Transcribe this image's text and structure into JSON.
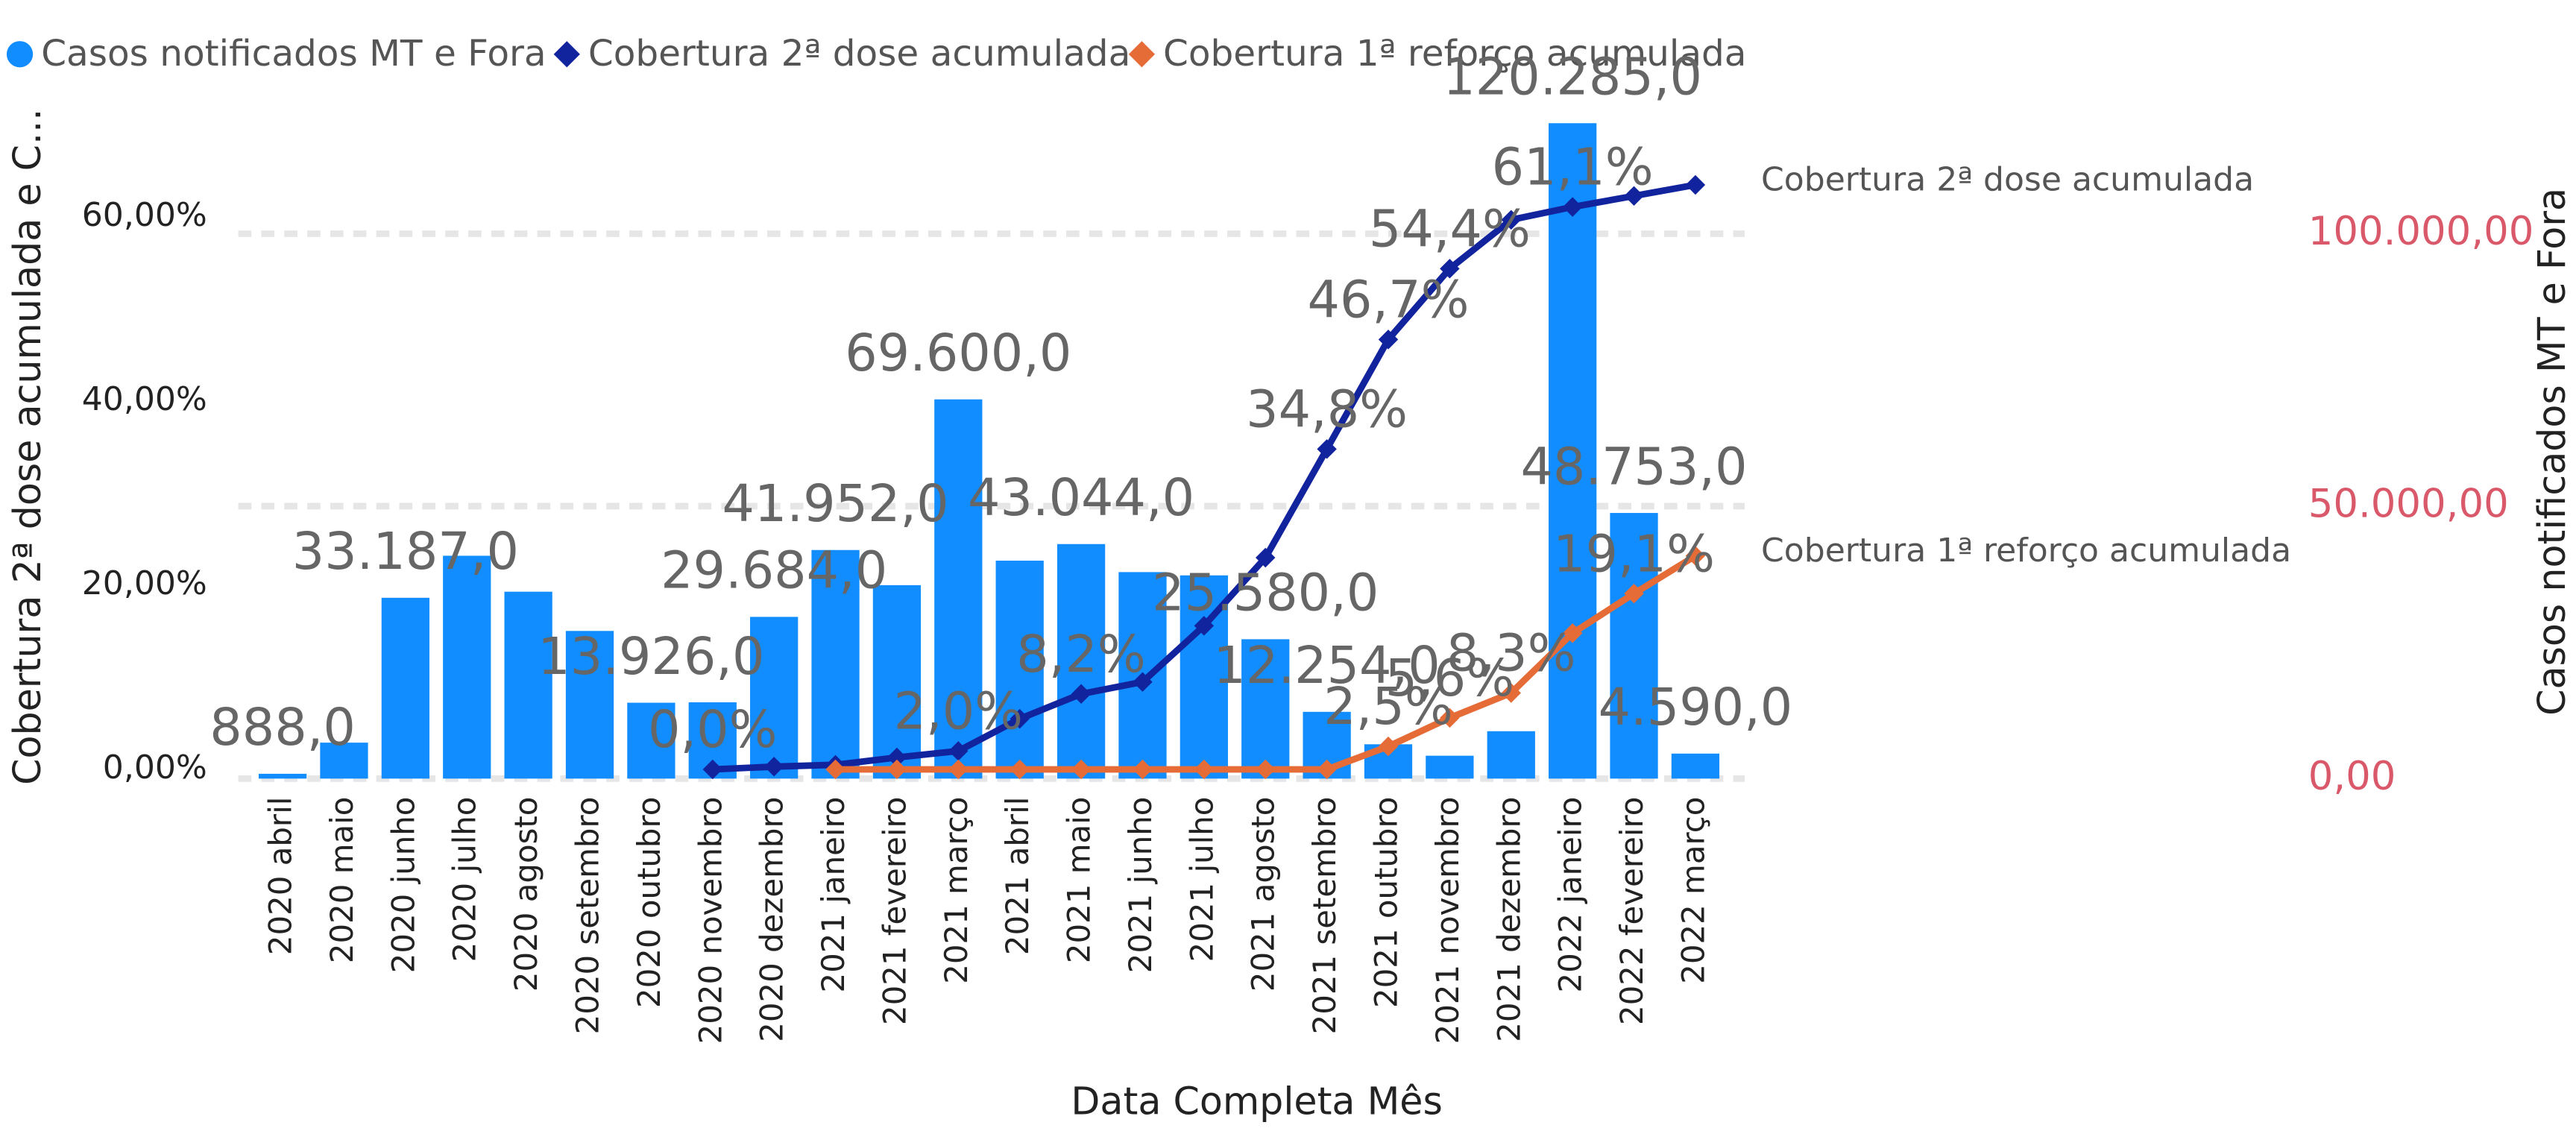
{
  "chart_data": {
    "type": "combo",
    "x_label": "Data Completa Mês",
    "y_label": "Cobertura 2ª dose acumulada e C...",
    "y2_label": "Casos notificados MT e Fora",
    "categories": [
      "2020 abril",
      "2020 maio",
      "2020 junho",
      "2020 julho",
      "2020 agosto",
      "2020 setembro",
      "2020 outubro",
      "2020 novembro",
      "2020 dezembro",
      "2021 janeiro",
      "2021 fevereiro",
      "2021 março",
      "2021 abril",
      "2021 maio",
      "2021 junho",
      "2021 julho",
      "2021 agosto",
      "2021 setembro",
      "2021 outubro",
      "2021 novembro",
      "2021 dezembro",
      "2022 janeiro",
      "2022 fevereiro",
      "2022 março"
    ],
    "series": [
      {
        "name": "Casos notificados MT e Fora",
        "type": "bar",
        "axis": "y2",
        "color": "#118DFF",
        "values": [
          888,
          6600,
          33187,
          40900,
          34300,
          27100,
          13926,
          14000,
          29684,
          41952,
          35500,
          69600,
          40000,
          43044,
          37900,
          37300,
          25580,
          12254,
          6300,
          4200,
          8700,
          120285,
          48753,
          4590
        ],
        "value_labels": [
          "888,0",
          null,
          "33.187,0",
          null,
          null,
          null,
          "13.926,0",
          null,
          "29.684,0",
          "41.952,0",
          null,
          "69.600,0",
          null,
          "43.044,0",
          null,
          null,
          "25.580,0",
          "12.254,0",
          null,
          null,
          null,
          "120.285,0",
          "48.753,0",
          "4.590,0"
        ]
      },
      {
        "name": "Cobertura 2ª dose acumulada",
        "type": "line",
        "axis": "y",
        "color": "#12239E",
        "values": [
          null,
          null,
          null,
          null,
          null,
          null,
          null,
          0,
          0.3,
          0.5,
          1.3,
          2.0,
          5.5,
          8.2,
          9.5,
          15.6,
          23.0,
          34.8,
          46.7,
          54.4,
          59.7,
          61.1,
          62.3,
          63.5
        ],
        "value_labels": [
          null,
          null,
          null,
          null,
          null,
          null,
          null,
          "0,0%",
          null,
          null,
          null,
          "2,0%",
          null,
          "8,2%",
          null,
          null,
          null,
          "34,8%",
          "46,7%",
          "54,4%",
          null,
          "61,1%",
          null,
          null
        ]
      },
      {
        "name": "Cobertura 1ª reforço acumulada",
        "type": "line",
        "axis": "y",
        "color": "#E66C37",
        "values": [
          null,
          null,
          null,
          null,
          null,
          null,
          null,
          null,
          null,
          0,
          0,
          0,
          0,
          0,
          0,
          0,
          0,
          0,
          2.5,
          5.6,
          8.3,
          14.8,
          19.1,
          23.2
        ],
        "value_labels": [
          null,
          null,
          null,
          null,
          null,
          null,
          null,
          null,
          null,
          null,
          null,
          null,
          null,
          null,
          null,
          null,
          null,
          null,
          "2,5%",
          "5,6%",
          "8,3%",
          null,
          "19,1%",
          null
        ]
      }
    ],
    "ylim": [
      -1,
      70.2
    ],
    "yticks": [
      {
        "value": 0,
        "label": "0,00%"
      },
      {
        "value": 20,
        "label": "20,00%"
      },
      {
        "value": 40,
        "label": "40,00%"
      },
      {
        "value": 60,
        "label": "60,00%"
      }
    ],
    "y2lim": [
      0,
      120285
    ],
    "y2ticks": [
      {
        "value": 0,
        "label": "0,00"
      },
      {
        "value": 50000,
        "label": "50.000,00"
      },
      {
        "value": 100000,
        "label": "100.000,00"
      }
    ],
    "grid": true,
    "y2_tick_color": "#D9596A"
  }
}
